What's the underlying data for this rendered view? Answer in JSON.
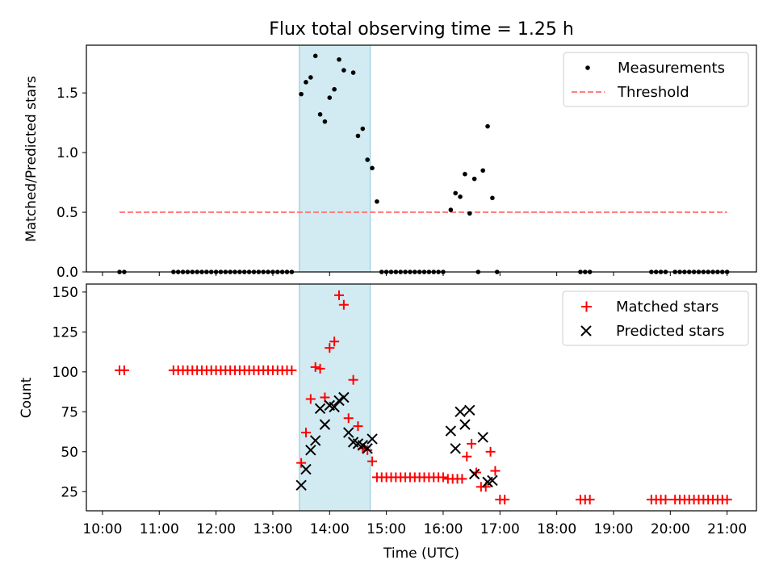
{
  "chart_data": {
    "type": "scatter",
    "title": "Flux total observing time = 1.25 h",
    "xlabel": "Time (UTC)",
    "x_ticks": [
      "10:00",
      "11:00",
      "12:00",
      "13:00",
      "14:00",
      "15:00",
      "16:00",
      "17:00",
      "18:00",
      "19:00",
      "20:00",
      "21:00"
    ],
    "shaded_interval": {
      "start": "13:28",
      "end": "14:43",
      "color": "#add8e6"
    },
    "top_panel": {
      "ylabel": "Matched/Predicted stars",
      "ylim": [
        0,
        1.9
      ],
      "yticks": [
        "0.0",
        "0.5",
        "1.0",
        "1.5"
      ],
      "legend_position": "upper right",
      "series": [
        {
          "name": "Measurements",
          "marker": "dot",
          "color": "#000000",
          "points": [
            [
              "10:18",
              0
            ],
            [
              "10:23",
              0
            ],
            [
              "11:15",
              0
            ],
            [
              "11:20",
              0
            ],
            [
              "11:25",
              0
            ],
            [
              "11:30",
              0
            ],
            [
              "11:35",
              0
            ],
            [
              "11:40",
              0
            ],
            [
              "11:45",
              0
            ],
            [
              "11:50",
              0
            ],
            [
              "11:55",
              0
            ],
            [
              "12:00",
              0
            ],
            [
              "12:05",
              0
            ],
            [
              "12:10",
              0
            ],
            [
              "12:15",
              0
            ],
            [
              "12:20",
              0
            ],
            [
              "12:25",
              0
            ],
            [
              "12:30",
              0
            ],
            [
              "12:35",
              0
            ],
            [
              "12:40",
              0
            ],
            [
              "12:45",
              0
            ],
            [
              "12:50",
              0
            ],
            [
              "12:55",
              0
            ],
            [
              "13:00",
              0
            ],
            [
              "13:05",
              0
            ],
            [
              "13:10",
              0
            ],
            [
              "13:15",
              0
            ],
            [
              "13:20",
              0
            ],
            [
              "13:30",
              1.49
            ],
            [
              "13:35",
              1.59
            ],
            [
              "13:40",
              1.63
            ],
            [
              "13:45",
              1.81
            ],
            [
              "13:50",
              1.32
            ],
            [
              "13:55",
              1.26
            ],
            [
              "14:00",
              1.46
            ],
            [
              "14:05",
              1.53
            ],
            [
              "14:10",
              1.78
            ],
            [
              "14:15",
              1.69
            ],
            [
              "14:25",
              1.67
            ],
            [
              "14:30",
              1.14
            ],
            [
              "14:35",
              1.2
            ],
            [
              "14:40",
              0.94
            ],
            [
              "14:45",
              0.87
            ],
            [
              "14:50",
              0.59
            ],
            [
              "14:55",
              0
            ],
            [
              "15:00",
              0
            ],
            [
              "15:05",
              0
            ],
            [
              "15:10",
              0
            ],
            [
              "15:15",
              0
            ],
            [
              "15:20",
              0
            ],
            [
              "15:25",
              0
            ],
            [
              "15:30",
              0
            ],
            [
              "15:35",
              0
            ],
            [
              "15:40",
              0
            ],
            [
              "15:45",
              0
            ],
            [
              "15:50",
              0
            ],
            [
              "15:55",
              0
            ],
            [
              "16:00",
              0
            ],
            [
              "16:08",
              0.52
            ],
            [
              "16:13",
              0.66
            ],
            [
              "16:18",
              0.63
            ],
            [
              "16:23",
              0.82
            ],
            [
              "16:28",
              0.49
            ],
            [
              "16:33",
              0.78
            ],
            [
              "16:37",
              0
            ],
            [
              "16:42",
              0.85
            ],
            [
              "16:47",
              1.22
            ],
            [
              "16:52",
              0.62
            ],
            [
              "16:57",
              0
            ],
            [
              "18:25",
              0
            ],
            [
              "18:30",
              0
            ],
            [
              "18:35",
              0
            ],
            [
              "19:40",
              0
            ],
            [
              "19:45",
              0
            ],
            [
              "19:50",
              0
            ],
            [
              "19:55",
              0
            ],
            [
              "20:05",
              0
            ],
            [
              "20:10",
              0
            ],
            [
              "20:15",
              0
            ],
            [
              "20:20",
              0
            ],
            [
              "20:25",
              0
            ],
            [
              "20:30",
              0
            ],
            [
              "20:35",
              0
            ],
            [
              "20:40",
              0
            ],
            [
              "20:45",
              0
            ],
            [
              "20:50",
              0
            ],
            [
              "20:55",
              0
            ],
            [
              "21:00",
              0
            ]
          ]
        },
        {
          "name": "Threshold",
          "style": "dashed",
          "color": "#ff7f7f",
          "points": [
            [
              "10:18",
              0.5
            ],
            [
              "21:00",
              0.5
            ]
          ]
        }
      ]
    },
    "bottom_panel": {
      "ylabel": "Count",
      "ylim": [
        13,
        155
      ],
      "yticks": [
        "25",
        "50",
        "75",
        "100",
        "125",
        "150"
      ],
      "legend_position": "upper right",
      "series": [
        {
          "name": "Matched stars",
          "marker": "plus",
          "color": "#ff0000",
          "points": [
            [
              "10:18",
              101
            ],
            [
              "10:23",
              101
            ],
            [
              "11:15",
              101
            ],
            [
              "11:20",
              101
            ],
            [
              "11:25",
              101
            ],
            [
              "11:30",
              101
            ],
            [
              "11:35",
              101
            ],
            [
              "11:40",
              101
            ],
            [
              "11:45",
              101
            ],
            [
              "11:50",
              101
            ],
            [
              "11:55",
              101
            ],
            [
              "12:00",
              101
            ],
            [
              "12:05",
              101
            ],
            [
              "12:10",
              101
            ],
            [
              "12:15",
              101
            ],
            [
              "12:20",
              101
            ],
            [
              "12:25",
              101
            ],
            [
              "12:30",
              101
            ],
            [
              "12:35",
              101
            ],
            [
              "12:40",
              101
            ],
            [
              "12:45",
              101
            ],
            [
              "12:50",
              101
            ],
            [
              "12:55",
              101
            ],
            [
              "13:00",
              101
            ],
            [
              "13:05",
              101
            ],
            [
              "13:10",
              101
            ],
            [
              "13:15",
              101
            ],
            [
              "13:20",
              101
            ],
            [
              "13:30",
              43
            ],
            [
              "13:35",
              62
            ],
            [
              "13:40",
              83
            ],
            [
              "13:45",
              103
            ],
            [
              "13:50",
              102
            ],
            [
              "13:55",
              84
            ],
            [
              "14:00",
              115
            ],
            [
              "14:05",
              119
            ],
            [
              "14:10",
              148
            ],
            [
              "14:15",
              142
            ],
            [
              "14:20",
              71
            ],
            [
              "14:25",
              95
            ],
            [
              "14:30",
              66
            ],
            [
              "14:35",
              52
            ],
            [
              "14:40",
              51
            ],
            [
              "14:45",
              44
            ],
            [
              "14:50",
              34
            ],
            [
              "14:55",
              34
            ],
            [
              "15:00",
              34
            ],
            [
              "15:05",
              34
            ],
            [
              "15:10",
              34
            ],
            [
              "15:15",
              34
            ],
            [
              "15:20",
              34
            ],
            [
              "15:25",
              34
            ],
            [
              "15:30",
              34
            ],
            [
              "15:35",
              34
            ],
            [
              "15:40",
              34
            ],
            [
              "15:45",
              34
            ],
            [
              "15:50",
              34
            ],
            [
              "15:55",
              34
            ],
            [
              "16:00",
              34
            ],
            [
              "16:05",
              33
            ],
            [
              "16:10",
              33
            ],
            [
              "16:15",
              33
            ],
            [
              "16:20",
              33
            ],
            [
              "16:25",
              47
            ],
            [
              "16:30",
              55
            ],
            [
              "16:35",
              37
            ],
            [
              "16:40",
              28
            ],
            [
              "16:45",
              28
            ],
            [
              "16:50",
              50
            ],
            [
              "16:55",
              38
            ],
            [
              "17:00",
              20
            ],
            [
              "17:05",
              20
            ],
            [
              "18:25",
              20
            ],
            [
              "18:30",
              20
            ],
            [
              "18:35",
              20
            ],
            [
              "19:40",
              20
            ],
            [
              "19:45",
              20
            ],
            [
              "19:50",
              20
            ],
            [
              "19:55",
              20
            ],
            [
              "20:05",
              20
            ],
            [
              "20:10",
              20
            ],
            [
              "20:15",
              20
            ],
            [
              "20:20",
              20
            ],
            [
              "20:25",
              20
            ],
            [
              "20:30",
              20
            ],
            [
              "20:35",
              20
            ],
            [
              "20:40",
              20
            ],
            [
              "20:45",
              20
            ],
            [
              "20:50",
              20
            ],
            [
              "20:55",
              20
            ],
            [
              "21:00",
              20
            ]
          ]
        },
        {
          "name": "Predicted stars",
          "marker": "x",
          "color": "#000000",
          "points": [
            [
              "13:30",
              29
            ],
            [
              "13:35",
              39
            ],
            [
              "13:40",
              51
            ],
            [
              "13:45",
              57
            ],
            [
              "13:50",
              77
            ],
            [
              "13:55",
              67
            ],
            [
              "14:00",
              79
            ],
            [
              "14:05",
              78
            ],
            [
              "14:10",
              82
            ],
            [
              "14:15",
              84
            ],
            [
              "14:20",
              62
            ],
            [
              "14:25",
              56
            ],
            [
              "14:30",
              55
            ],
            [
              "14:35",
              54
            ],
            [
              "14:40",
              52
            ],
            [
              "14:45",
              58
            ],
            [
              "16:08",
              63
            ],
            [
              "16:13",
              52
            ],
            [
              "16:18",
              75
            ],
            [
              "16:23",
              67
            ],
            [
              "16:28",
              76
            ],
            [
              "16:33",
              36
            ],
            [
              "16:42",
              59
            ],
            [
              "16:47",
              31
            ],
            [
              "16:52",
              32
            ]
          ]
        }
      ]
    }
  }
}
